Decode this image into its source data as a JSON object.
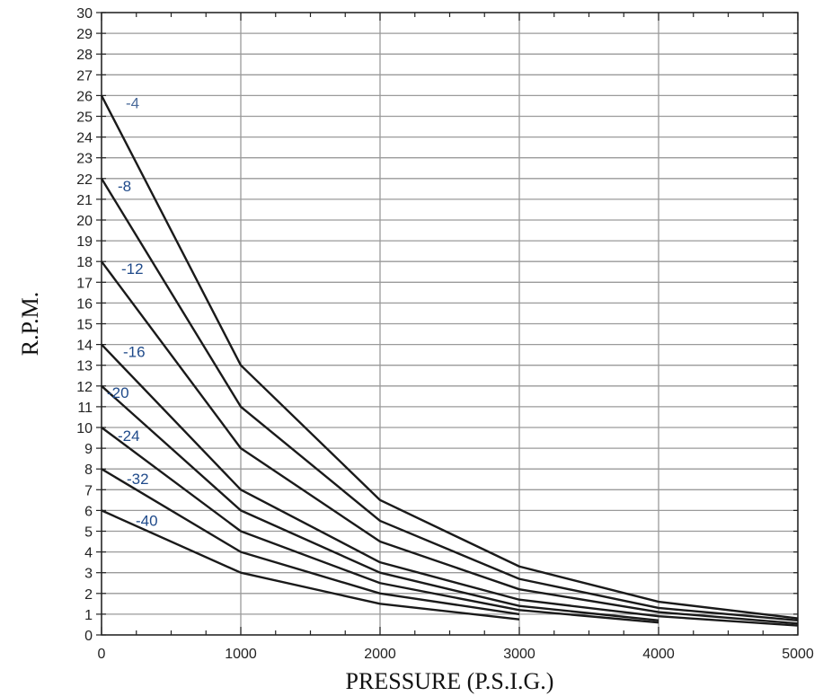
{
  "chart_data": {
    "type": "line",
    "title": "",
    "xlabel": "PRESSURE (P.S.I.G.)",
    "ylabel": "R.P.M.",
    "xlim": [
      0,
      5000
    ],
    "ylim": [
      0,
      30
    ],
    "x_ticks": [
      "0",
      "1000",
      "2000",
      "3000",
      "4000",
      "5000"
    ],
    "y_ticks": [
      "0",
      "1",
      "2",
      "3",
      "4",
      "5",
      "6",
      "7",
      "8",
      "9",
      "10",
      "11",
      "12",
      "13",
      "14",
      "15",
      "16",
      "17",
      "18",
      "19",
      "20",
      "21",
      "22",
      "23",
      "24",
      "25",
      "26",
      "27",
      "28",
      "29",
      "30"
    ],
    "grid": true,
    "line_color": "#1a1a1a",
    "label_color": "#1f4a8a",
    "label_color_first": "#4a6a9a",
    "series": [
      {
        "name": "-4",
        "x": [
          0,
          1000,
          2000,
          3000,
          4000,
          5000
        ],
        "y": [
          26,
          13,
          6.5,
          3.3,
          1.6,
          0.8
        ]
      },
      {
        "name": "-8",
        "x": [
          0,
          1000,
          2000,
          3000,
          4000,
          5000
        ],
        "y": [
          22,
          11,
          5.5,
          2.7,
          1.3,
          0.7
        ]
      },
      {
        "name": "-12",
        "x": [
          0,
          1000,
          2000,
          3000,
          4000,
          5000
        ],
        "y": [
          18,
          9,
          4.5,
          2.2,
          1.1,
          0.55
        ]
      },
      {
        "name": "-16",
        "x": [
          0,
          1000,
          2000,
          3000,
          4000,
          5000
        ],
        "y": [
          14,
          7,
          3.5,
          1.7,
          0.9,
          0.45
        ]
      },
      {
        "name": "-20",
        "x": [
          0,
          1000,
          2000,
          3000,
          4000
        ],
        "y": [
          12,
          6,
          3,
          1.4,
          0.7
        ]
      },
      {
        "name": "-24",
        "x": [
          0,
          1000,
          2000,
          3000,
          4000
        ],
        "y": [
          10,
          5,
          2.5,
          1.2,
          0.6
        ]
      },
      {
        "name": "-32",
        "x": [
          0,
          1000,
          2000,
          3000
        ],
        "y": [
          8,
          4,
          2,
          1
        ]
      },
      {
        "name": "-40",
        "x": [
          0,
          1000,
          2000,
          3000
        ],
        "y": [
          6,
          3,
          1.5,
          0.75
        ]
      }
    ]
  }
}
